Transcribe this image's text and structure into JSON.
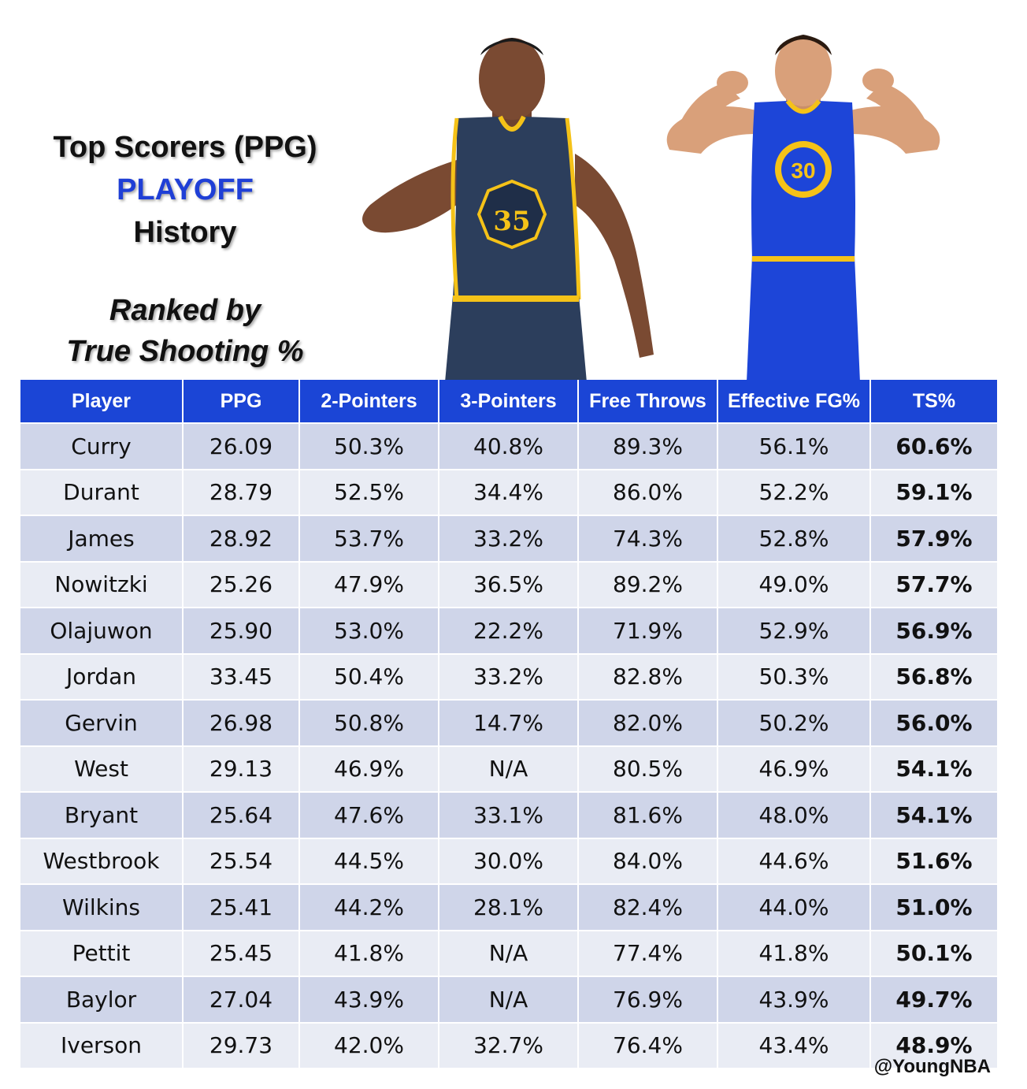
{
  "title": {
    "line1": "Top Scorers (PPG)",
    "line2": "PLAYOFF",
    "line3": "History",
    "sub1": "Ranked by",
    "sub2": "True Shooting %"
  },
  "colors": {
    "header_bg": "#1b45d6",
    "accent_text": "#1f3fd6",
    "row_dark": "#cfd5e9",
    "row_light": "#e9ecf4"
  },
  "images": {
    "left_player_jersey": "35",
    "right_player_jersey": "30"
  },
  "chart_data": {
    "type": "table",
    "columns": [
      "Player",
      "PPG",
      "2-Pointers",
      "3-Pointers",
      "Free Throws",
      "Effective FG%",
      "TS%"
    ],
    "rows": [
      [
        "Curry",
        "26.09",
        "50.3%",
        "40.8%",
        "89.3%",
        "56.1%",
        "60.6%"
      ],
      [
        "Durant",
        "28.79",
        "52.5%",
        "34.4%",
        "86.0%",
        "52.2%",
        "59.1%"
      ],
      [
        "James",
        "28.92",
        "53.7%",
        "33.2%",
        "74.3%",
        "52.8%",
        "57.9%"
      ],
      [
        "Nowitzki",
        "25.26",
        "47.9%",
        "36.5%",
        "89.2%",
        "49.0%",
        "57.7%"
      ],
      [
        "Olajuwon",
        "25.90",
        "53.0%",
        "22.2%",
        "71.9%",
        "52.9%",
        "56.9%"
      ],
      [
        "Jordan",
        "33.45",
        "50.4%",
        "33.2%",
        "82.8%",
        "50.3%",
        "56.8%"
      ],
      [
        "Gervin",
        "26.98",
        "50.8%",
        "14.7%",
        "82.0%",
        "50.2%",
        "56.0%"
      ],
      [
        "West",
        "29.13",
        "46.9%",
        "N/A",
        "80.5%",
        "46.9%",
        "54.1%"
      ],
      [
        "Bryant",
        "25.64",
        "47.6%",
        "33.1%",
        "81.6%",
        "48.0%",
        "54.1%"
      ],
      [
        "Westbrook",
        "25.54",
        "44.5%",
        "30.0%",
        "84.0%",
        "44.6%",
        "51.6%"
      ],
      [
        "Wilkins",
        "25.41",
        "44.2%",
        "28.1%",
        "82.4%",
        "44.0%",
        "51.0%"
      ],
      [
        "Pettit",
        "25.45",
        "41.8%",
        "N/A",
        "77.4%",
        "41.8%",
        "50.1%"
      ],
      [
        "Baylor",
        "27.04",
        "43.9%",
        "N/A",
        "76.9%",
        "43.9%",
        "49.7%"
      ],
      [
        "Iverson",
        "29.73",
        "42.0%",
        "32.7%",
        "76.4%",
        "43.4%",
        "48.9%"
      ]
    ]
  },
  "watermark": "@YoungNBA"
}
